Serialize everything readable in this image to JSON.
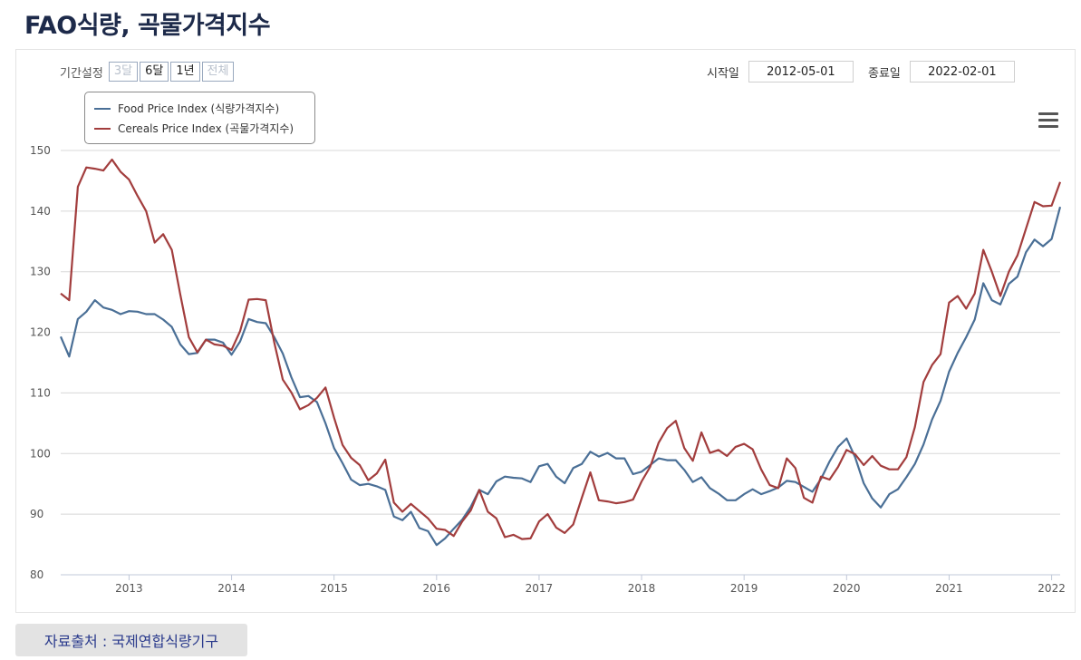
{
  "page": {
    "title": "FAO식량, 곡물가격지수"
  },
  "controls": {
    "period_label": "기간설정",
    "ranges": [
      {
        "label": "3달",
        "state": "disabled"
      },
      {
        "label": "6달",
        "state": "active"
      },
      {
        "label": "1년",
        "state": "active"
      },
      {
        "label": "전체",
        "state": "disabled"
      }
    ],
    "start_label": "시작일",
    "start_value": "2012-05-01",
    "end_label": "종료일",
    "end_value": "2022-02-01"
  },
  "source": {
    "text": "자료출처 : 국제연합식량기구"
  },
  "chart_data": {
    "type": "line",
    "title": "FAO식량, 곡물가격지수",
    "xlabel": "",
    "ylabel": "",
    "ylim": [
      80,
      150
    ],
    "yticks": [
      80,
      90,
      100,
      110,
      120,
      130,
      140,
      150
    ],
    "xticks": [
      "2013",
      "2014",
      "2015",
      "2016",
      "2017",
      "2018",
      "2019",
      "2020",
      "2021",
      "2022"
    ],
    "x_start": "2012-05",
    "x_end": "2022-02",
    "grid": true,
    "legend_position": "top-left",
    "series": [
      {
        "name": "Food Price Index (식량가격지수)",
        "color": "#4a6f96",
        "values": [
          119.3,
          116.0,
          122.2,
          123.4,
          125.3,
          124.1,
          123.7,
          123.0,
          123.5,
          123.4,
          123.0,
          123.0,
          122.1,
          120.9,
          118.0,
          116.4,
          116.6,
          118.8,
          118.8,
          118.3,
          116.3,
          118.5,
          122.2,
          121.7,
          121.5,
          119.2,
          116.5,
          112.6,
          109.3,
          109.5,
          108.5,
          105.0,
          100.9,
          98.4,
          95.7,
          94.8,
          95.0,
          94.6,
          94.0,
          89.6,
          89.0,
          90.4,
          87.7,
          87.2,
          84.9,
          86.0,
          87.6,
          89.1,
          91.2,
          94.0,
          93.3,
          95.4,
          96.2,
          96.0,
          95.9,
          95.3,
          97.9,
          98.3,
          96.2,
          95.1,
          97.6,
          98.3,
          100.3,
          99.5,
          100.1,
          99.2,
          99.2,
          96.6,
          97.0,
          98.1,
          99.2,
          98.9,
          98.9,
          97.3,
          95.3,
          96.1,
          94.3,
          93.4,
          92.3,
          92.3,
          93.3,
          94.1,
          93.3,
          93.8,
          94.4,
          95.5,
          95.3,
          94.5,
          93.7,
          95.8,
          98.7,
          101.1,
          102.5,
          99.4,
          95.1,
          92.6,
          91.1,
          93.3,
          94.1,
          96.1,
          98.3,
          101.5,
          105.6,
          108.7,
          113.5,
          116.6,
          119.2,
          122.1,
          128.1,
          125.3,
          124.6,
          128.0,
          129.2,
          133.2,
          135.3,
          134.2,
          135.4,
          140.7
        ]
      },
      {
        "name": "Cereals Price Index (곡물가격지수)",
        "color": "#a23d3d",
        "values": [
          126.4,
          125.3,
          144.0,
          147.2,
          147.0,
          146.7,
          148.5,
          146.5,
          145.2,
          142.5,
          140.0,
          134.8,
          136.2,
          133.6,
          126.2,
          119.2,
          116.7,
          118.8,
          118.0,
          117.8,
          117.1,
          120.2,
          125.4,
          125.5,
          125.3,
          118.3,
          112.2,
          110.1,
          107.3,
          108.0,
          109.2,
          110.9,
          105.9,
          101.4,
          99.3,
          98.1,
          95.6,
          96.7,
          99.0,
          91.9,
          90.4,
          91.7,
          90.5,
          89.3,
          87.6,
          87.4,
          86.4,
          88.8,
          90.6,
          94.0,
          90.4,
          89.3,
          86.2,
          86.6,
          85.9,
          86.0,
          88.8,
          90.0,
          87.8,
          86.9,
          88.3,
          92.7,
          96.9,
          92.3,
          92.1,
          91.8,
          92.0,
          92.4,
          95.4,
          97.8,
          101.8,
          104.2,
          105.4,
          100.9,
          98.8,
          103.5,
          100.1,
          100.6,
          99.6,
          101.1,
          101.6,
          100.7,
          97.4,
          94.8,
          94.3,
          99.2,
          97.6,
          92.7,
          91.9,
          96.2,
          95.7,
          97.8,
          100.6,
          99.9,
          98.1,
          99.6,
          98.0,
          97.4,
          97.4,
          99.4,
          104.4,
          111.8,
          114.6,
          116.4,
          124.9,
          126.0,
          123.9,
          126.4,
          133.6,
          130.0,
          126.0,
          130.0,
          132.7,
          137.1,
          141.5,
          140.8,
          140.9,
          144.8
        ]
      }
    ]
  }
}
